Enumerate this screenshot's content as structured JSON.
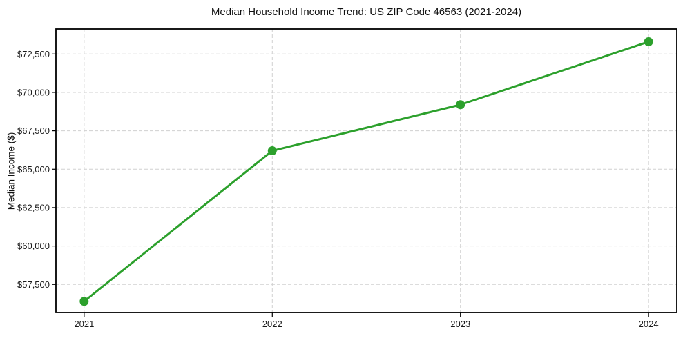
{
  "chart_data": {
    "type": "line",
    "title": "Median Household Income Trend: US ZIP Code 46563 (2021-2024)",
    "xlabel": "",
    "ylabel": "Median Income ($)",
    "x": [
      2021,
      2022,
      2023,
      2024
    ],
    "series": [
      {
        "name": "Median household income",
        "color": "#2ca02c",
        "values": [
          56400,
          66200,
          69200,
          73300
        ]
      }
    ],
    "xticks": [
      2021,
      2022,
      2023,
      2024
    ],
    "xtick_labels": [
      "2021",
      "2022",
      "2023",
      "2024"
    ],
    "yticks": [
      57500,
      60000,
      62500,
      65000,
      67500,
      70000,
      72500
    ],
    "ytick_labels": [
      "$57,500",
      "$60,000",
      "$62,500",
      "$65,000",
      "$67,500",
      "$70,000",
      "$72,500"
    ],
    "xlim": [
      2020.85,
      2024.15
    ],
    "ylim": [
      55670,
      74130
    ],
    "grid": true,
    "grid_style": "dashed",
    "grid_color": "#d0d0d0",
    "axis_color": "#000000",
    "tick_label_color": "#1a1a1a",
    "text_color": "#111111",
    "background": "#ffffff",
    "legend_position": "none",
    "marker": "circle"
  }
}
